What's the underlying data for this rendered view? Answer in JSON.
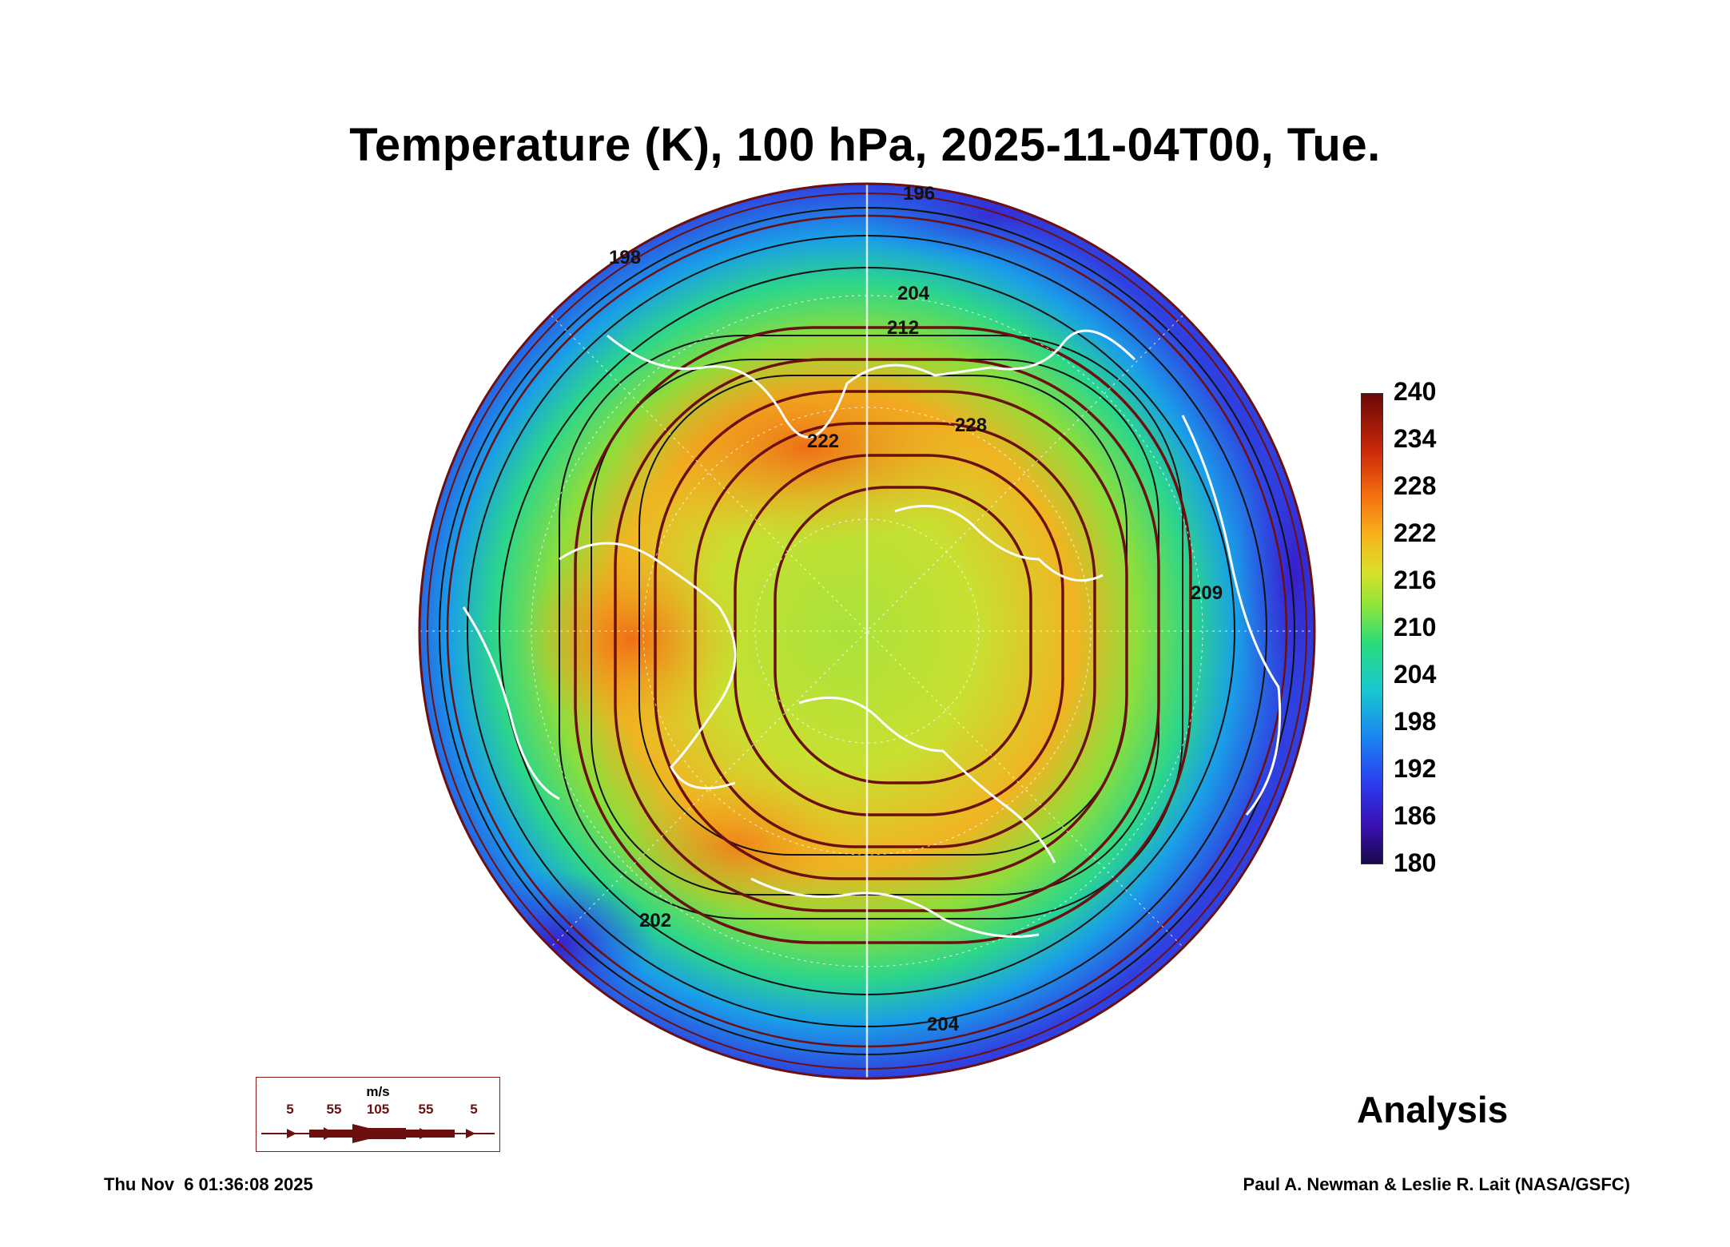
{
  "title": "Temperature (K), 100 hPa, 2025-11-04T00, Tue.",
  "colorbar": {
    "ticks": [
      "240",
      "234",
      "228",
      "222",
      "216",
      "210",
      "204",
      "198",
      "192",
      "186",
      "180"
    ]
  },
  "contour_labels": [
    "196",
    "198",
    "204",
    "212",
    "222",
    "228",
    "209",
    "204",
    "202"
  ],
  "wind_legend": {
    "unit": "m/s",
    "values": [
      "5",
      "55",
      "105",
      "55",
      "5"
    ]
  },
  "panel_label": "Analysis",
  "timestamp": "Thu Nov  6 01:36:08 2025",
  "credit": "Paul A. Newman & Leslie R. Lait (NASA/GSFC)",
  "colors": {
    "streamline": "#6b0f0f",
    "coastline": "#ffffff",
    "contour": "#111111"
  }
}
